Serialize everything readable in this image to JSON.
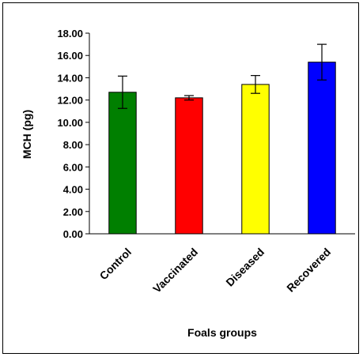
{
  "chart_data": {
    "type": "bar",
    "categories": [
      "Control",
      "Vaccinated",
      "Diseased",
      "Recovered"
    ],
    "values": [
      12.7,
      12.2,
      13.4,
      15.4
    ],
    "errors": [
      1.45,
      0.2,
      0.8,
      1.6
    ],
    "colors": [
      "#007F00",
      "#FF0000",
      "#FFFF00",
      "#0000FF"
    ],
    "title": "",
    "xlabel": "Foals groups",
    "ylabel": "MCH (pg)",
    "ylim": [
      0,
      18
    ],
    "yticks": [
      "0.00",
      "2.00",
      "4.00",
      "6.00",
      "8.00",
      "10.00",
      "12.00",
      "14.00",
      "16.00",
      "18.00"
    ],
    "grid": false,
    "legend": "none"
  }
}
